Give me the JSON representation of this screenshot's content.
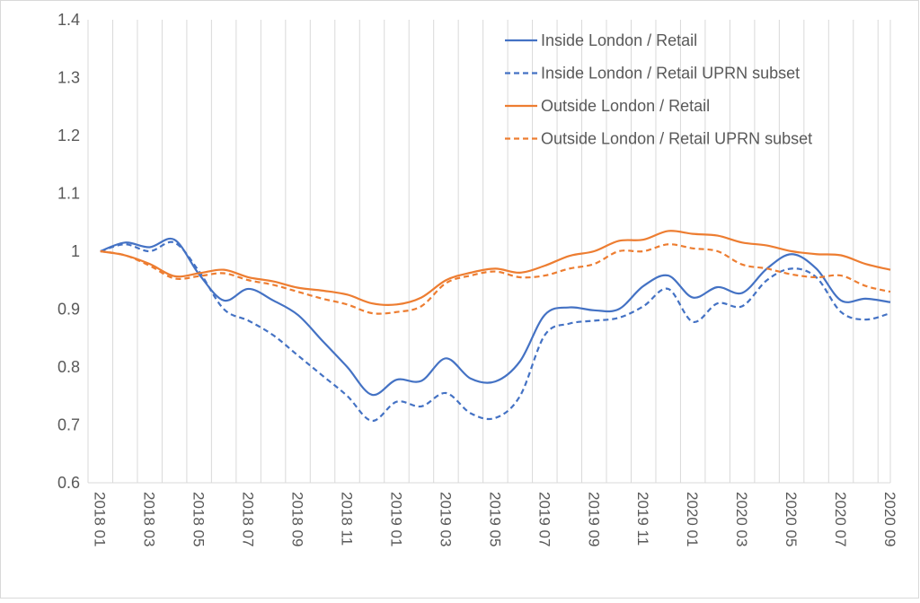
{
  "chart_data": {
    "type": "line",
    "title": "",
    "xlabel": "",
    "ylabel": "",
    "ylim": [
      0.6,
      1.4
    ],
    "yticks": [
      "0.6",
      "0.7",
      "0.8",
      "0.9",
      "1",
      "1.1",
      "1.2",
      "1.3",
      "1.4"
    ],
    "grid": "vertical",
    "legend_position": "top-right",
    "categories": [
      "2018 01",
      "2018 02",
      "2018 03",
      "2018 04",
      "2018 05",
      "2018 06",
      "2018 07",
      "2018 08",
      "2018 09",
      "2018 10",
      "2018 11",
      "2018 12",
      "2019 01",
      "2019 02",
      "2019 03",
      "2019 04",
      "2019 05",
      "2019 06",
      "2019 07",
      "2019 08",
      "2019 09",
      "2019 10",
      "2019 11",
      "2019 12",
      "2020 01",
      "2020 02",
      "2020 03",
      "2020 04",
      "2020 05",
      "2020 06",
      "2020 07",
      "2020 08",
      "2020 09"
    ],
    "xtick_labels": [
      "2018 01",
      "2018 03",
      "2018 05",
      "2018 07",
      "2018 09",
      "2018 11",
      "2019 01",
      "2019 03",
      "2019 05",
      "2019 07",
      "2019 09",
      "2019 11",
      "2020 01",
      "2020 03",
      "2020 05",
      "2020 07",
      "2020 09"
    ],
    "series": [
      {
        "name": "Inside London / Retail",
        "color": "#4472c4",
        "dash": "solid",
        "values": [
          1.0,
          1.015,
          1.007,
          1.02,
          0.96,
          0.915,
          0.935,
          0.915,
          0.89,
          0.845,
          0.8,
          0.752,
          0.778,
          0.776,
          0.815,
          0.78,
          0.775,
          0.81,
          0.89,
          0.903,
          0.898,
          0.9,
          0.94,
          0.958,
          0.92,
          0.938,
          0.928,
          0.97,
          0.995,
          0.97,
          0.915,
          0.918,
          0.912
        ]
      },
      {
        "name": "Inside London / Retail UPRN subset",
        "color": "#4472c4",
        "dash": "dashed",
        "values": [
          1.0,
          1.012,
          1.0,
          1.015,
          0.965,
          0.9,
          0.88,
          0.855,
          0.82,
          0.785,
          0.75,
          0.707,
          0.74,
          0.732,
          0.755,
          0.72,
          0.712,
          0.75,
          0.855,
          0.875,
          0.88,
          0.885,
          0.905,
          0.935,
          0.878,
          0.91,
          0.905,
          0.95,
          0.97,
          0.955,
          0.895,
          0.882,
          0.893
        ]
      },
      {
        "name": "Outside London / Retail",
        "color": "#ed7d31",
        "dash": "solid",
        "values": [
          1.0,
          0.993,
          0.978,
          0.957,
          0.962,
          0.968,
          0.955,
          0.948,
          0.937,
          0.932,
          0.925,
          0.91,
          0.908,
          0.92,
          0.95,
          0.963,
          0.97,
          0.963,
          0.975,
          0.992,
          1.0,
          1.018,
          1.02,
          1.035,
          1.03,
          1.027,
          1.015,
          1.01,
          1.0,
          0.995,
          0.993,
          0.978,
          0.968
        ]
      },
      {
        "name": "Outside London / Retail UPRN subset",
        "color": "#ed7d31",
        "dash": "dashed",
        "values": [
          1.0,
          0.993,
          0.975,
          0.953,
          0.957,
          0.962,
          0.95,
          0.942,
          0.93,
          0.918,
          0.908,
          0.893,
          0.895,
          0.905,
          0.945,
          0.958,
          0.965,
          0.955,
          0.958,
          0.97,
          0.978,
          1.0,
          1.0,
          1.012,
          1.005,
          1.0,
          0.977,
          0.97,
          0.96,
          0.955,
          0.958,
          0.94,
          0.93
        ]
      }
    ]
  }
}
